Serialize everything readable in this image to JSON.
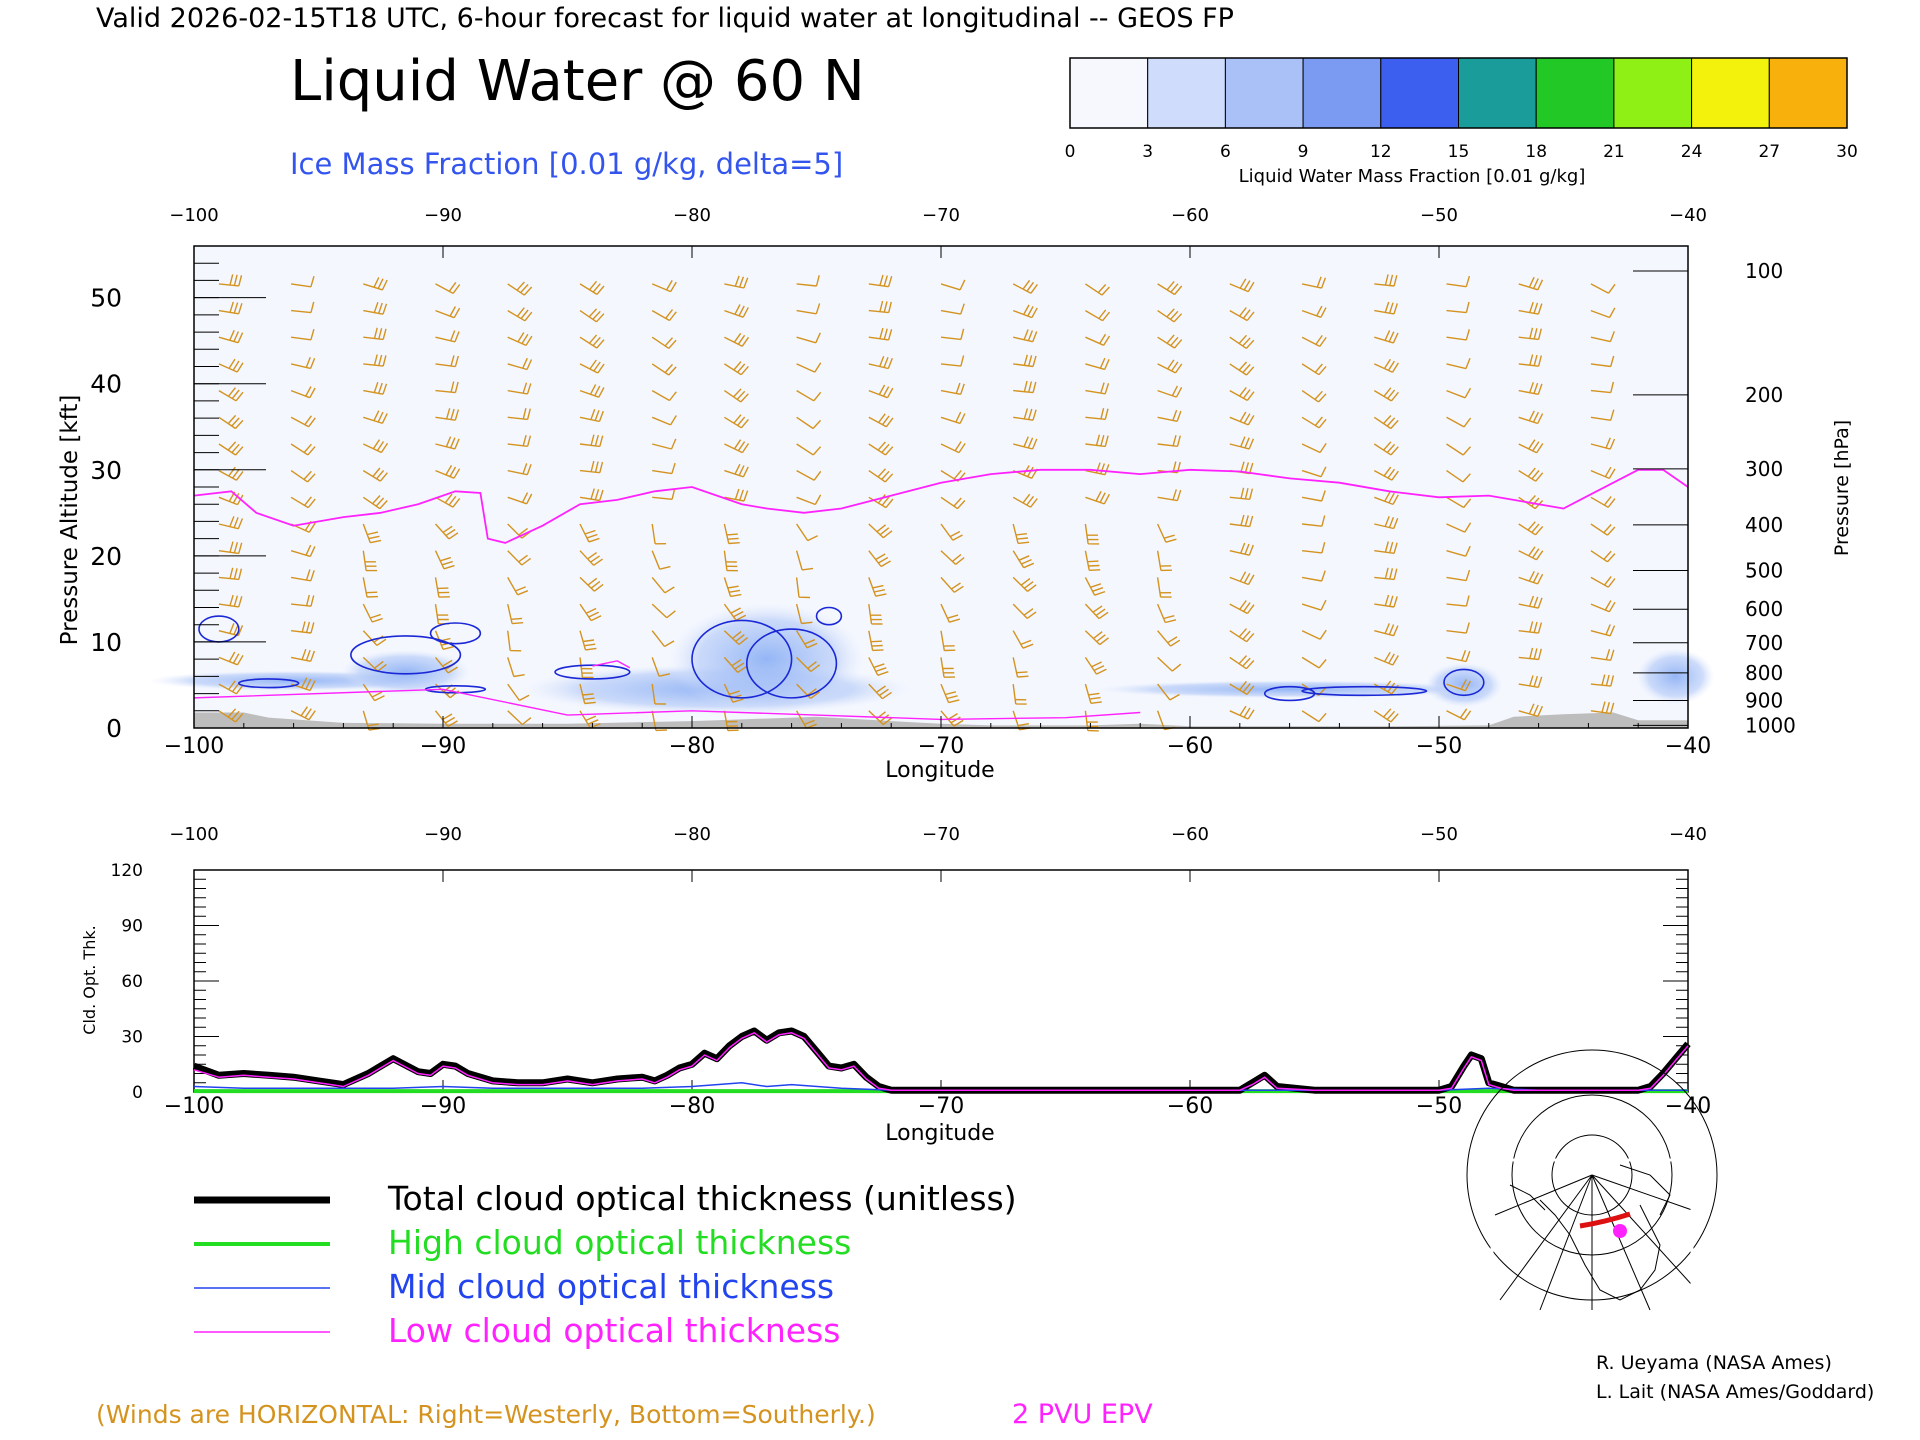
{
  "header": {
    "valid_line": "Valid 2026-02-15T18 UTC, 6-hour forecast for liquid water at longitudinal -- GEOS FP",
    "title": "Liquid Water @ 60 N",
    "subtitle": "Ice Mass Fraction [0.01 g/kg, delta=5]"
  },
  "colorbar": {
    "ticks": [
      "0",
      "3",
      "6",
      "9",
      "12",
      "15",
      "18",
      "21",
      "24",
      "27",
      "30"
    ],
    "colors": [
      "#f6f8fe",
      "#cfdcfb",
      "#a9c1f7",
      "#7b9af2",
      "#3c5ff0",
      "#1a9c9a",
      "#22c826",
      "#8ef014",
      "#f2f20c",
      "#f8b00c",
      "#f86a0a",
      "#f22a0a"
    ],
    "label": "Liquid Water Mass Fraction [0.01 g/kg]"
  },
  "colors": {
    "wind_barb": "#d4931f",
    "tropopause": "#ff22ff",
    "ice_contour": "#1a28d6",
    "liquid_shade": "#8fb2f5",
    "terrain": "#bdbdbd",
    "total": "#000000",
    "high": "#22dd22",
    "mid": "#2244ee",
    "low": "#ff22ff",
    "credit_winds": "#d4931f"
  },
  "chart_data": [
    {
      "type": "contour",
      "name": "top-panel",
      "xlabel": "Longitude",
      "ylabel_left": "Pressure Altitude [kft]",
      "ylabel_right": "Pressure [hPa]",
      "xlim": [
        -100,
        -40
      ],
      "ylim": [
        0,
        56
      ],
      "x_ticks": [
        -100,
        -90,
        -80,
        -70,
        -60,
        -50,
        -40
      ],
      "x_tick_labels": [
        "−100",
        "−90",
        "−80",
        "−70",
        "−60",
        "−50",
        "−40"
      ],
      "y_ticks": [
        0,
        10,
        20,
        30,
        40,
        50
      ],
      "y_tick_labels": [
        "0",
        "10",
        "20",
        "30",
        "40",
        "50"
      ],
      "pressure_ticks": [
        {
          "alt": 53.1,
          "label": "100"
        },
        {
          "alt": 38.7,
          "label": "200"
        },
        {
          "alt": 30.1,
          "label": "300"
        },
        {
          "alt": 23.6,
          "label": "400"
        },
        {
          "alt": 18.3,
          "label": "500"
        },
        {
          "alt": 13.8,
          "label": "600"
        },
        {
          "alt": 9.9,
          "label": "700"
        },
        {
          "alt": 6.4,
          "label": "800"
        },
        {
          "alt": 3.2,
          "label": "900"
        },
        {
          "alt": 0.3,
          "label": "1000"
        }
      ],
      "tropopause_2pvu": {
        "x": [
          -100,
          -98.5,
          -97.5,
          -96,
          -94,
          -92.5,
          -91,
          -89.5,
          -88.5,
          -88.2,
          -87.5,
          -86,
          -84.5,
          -83,
          -81.5,
          -80,
          -79,
          -78,
          -77,
          -75.5,
          -74,
          -72,
          -70,
          -68,
          -66,
          -64,
          -62,
          -60,
          -58,
          -56,
          -54,
          -52,
          -50,
          -48,
          -47,
          -46,
          -45,
          -44,
          -43,
          -42,
          -41,
          -40
        ],
        "y": [
          27,
          27.5,
          25,
          23.5,
          24.5,
          25,
          26,
          27.5,
          27.3,
          22,
          21.5,
          23.5,
          26,
          26.5,
          27.5,
          28,
          27,
          26,
          25.5,
          25,
          25.5,
          27,
          28.5,
          29.5,
          30,
          30,
          29.5,
          30,
          29.8,
          29,
          28.5,
          27.5,
          26.8,
          27,
          26.5,
          26,
          25.5,
          27,
          28.5,
          30,
          30,
          28
        ]
      },
      "liquid_regions": [
        {
          "cx": -79,
          "cy": 4.5,
          "rx": 6,
          "ry": 2.2
        },
        {
          "cx": -77,
          "cy": 8,
          "rx": 3,
          "ry": 5
        },
        {
          "cx": -96,
          "cy": 5.5,
          "rx": 4.5,
          "ry": 0.9
        },
        {
          "cx": -91.5,
          "cy": 6.5,
          "rx": 2,
          "ry": 2
        },
        {
          "cx": -49,
          "cy": 5,
          "rx": 1.2,
          "ry": 2
        },
        {
          "cx": -40.5,
          "cy": 6,
          "rx": 1.2,
          "ry": 2.5
        },
        {
          "cx": -56,
          "cy": 4.5,
          "rx": 6,
          "ry": 0.8
        }
      ],
      "ice_contours": [
        {
          "cx": -99,
          "cy": 11.5,
          "rx": 0.8,
          "ry": 1.5
        },
        {
          "cx": -97,
          "cy": 5.2,
          "rx": 1.2,
          "ry": 0.5
        },
        {
          "cx": -91.5,
          "cy": 8.5,
          "rx": 2.2,
          "ry": 2.2
        },
        {
          "cx": -89.5,
          "cy": 11,
          "rx": 1,
          "ry": 1.2
        },
        {
          "cx": -89.5,
          "cy": 4.5,
          "rx": 1.2,
          "ry": 0.4
        },
        {
          "cx": -84,
          "cy": 6.5,
          "rx": 1.5,
          "ry": 0.8
        },
        {
          "cx": -78,
          "cy": 8,
          "rx": 2,
          "ry": 4.5
        },
        {
          "cx": -76,
          "cy": 7.5,
          "rx": 1.8,
          "ry": 4
        },
        {
          "cx": -74.5,
          "cy": 13,
          "rx": 0.5,
          "ry": 1
        },
        {
          "cx": -56,
          "cy": 4,
          "rx": 1,
          "ry": 0.8
        },
        {
          "cx": -53,
          "cy": 4.3,
          "rx": 2.5,
          "ry": 0.5
        },
        {
          "cx": -49,
          "cy": 5.3,
          "rx": 0.8,
          "ry": 1.5
        }
      ],
      "terrain": {
        "x": [
          -100,
          -98,
          -97,
          -94,
          -90,
          -85,
          -80,
          -75,
          -72,
          -70,
          -68,
          -64,
          -62,
          -60,
          -58,
          -52,
          -48,
          -47,
          -45,
          -43,
          -42,
          -40
        ],
        "y": [
          1.8,
          1.8,
          1.2,
          0.6,
          0.5,
          0.5,
          0.8,
          1.3,
          0.8,
          0.5,
          0.3,
          0.3,
          0.5,
          0.2,
          0.2,
          0.2,
          0.3,
          1.3,
          1.6,
          1.8,
          0.9,
          0.9
        ]
      }
    },
    {
      "type": "line",
      "name": "bottom-panel",
      "xlabel": "Longitude",
      "ylabel": "Cld. Opt. Thk.",
      "xlim": [
        -100,
        -40
      ],
      "ylim": [
        0,
        120
      ],
      "x_ticks": [
        -100,
        -90,
        -80,
        -70,
        -60,
        -50,
        -40
      ],
      "x_tick_labels": [
        "−100",
        "−90",
        "−80",
        "−70",
        "−60",
        "−50",
        "−40"
      ],
      "y_ticks": [
        0,
        30,
        60,
        90,
        120
      ],
      "y_tick_labels": [
        "0",
        "30",
        "60",
        "90",
        "120"
      ],
      "series": [
        {
          "name": "Total cloud optical thickness (unitless)",
          "key": "total",
          "x": [
            -100,
            -99,
            -98,
            -97,
            -96,
            -95,
            -94,
            -93,
            -92,
            -91,
            -90.5,
            -90,
            -89.5,
            -89,
            -88,
            -87,
            -86,
            -85,
            -84,
            -83,
            -82,
            -81.5,
            -81,
            -80.5,
            -80,
            -79.5,
            -79,
            -78.5,
            -78,
            -77.5,
            -77,
            -76.5,
            -76,
            -75.5,
            -75,
            -74.5,
            -74,
            -73.5,
            -73,
            -72.5,
            -72,
            -70,
            -68,
            -65,
            -62,
            -60,
            -58,
            -57.5,
            -57,
            -56.5,
            -55,
            -52,
            -50,
            -49.5,
            -49,
            -48.7,
            -48.3,
            -48,
            -47.5,
            -47,
            -45,
            -43,
            -42,
            -41.5,
            -41,
            -40.5,
            -40
          ],
          "y": [
            14,
            9,
            10,
            9,
            8,
            6,
            4,
            10,
            18,
            11,
            10,
            15,
            14,
            10,
            6,
            5,
            5,
            7,
            5,
            7,
            8,
            6,
            9,
            13,
            15,
            21,
            18,
            25,
            30,
            33,
            28,
            32,
            33,
            30,
            22,
            14,
            13,
            15,
            8,
            3,
            1,
            1,
            1,
            1,
            1,
            1,
            1,
            5,
            9,
            3,
            1,
            1,
            1,
            3,
            14,
            20,
            18,
            5,
            3,
            1,
            1,
            1,
            1,
            3,
            10,
            18,
            26
          ]
        },
        {
          "name": "High cloud optical thickness",
          "key": "high",
          "x": [
            -100,
            -40
          ],
          "y": [
            0.5,
            0.5
          ]
        },
        {
          "name": "Mid cloud optical thickness",
          "key": "mid",
          "x": [
            -100,
            -98,
            -95,
            -92,
            -90,
            -88,
            -85,
            -82,
            -80,
            -78,
            -77,
            -76,
            -74,
            -72,
            -70,
            -60,
            -50,
            -48,
            -46,
            -40
          ],
          "y": [
            3,
            2,
            2,
            2,
            3,
            2,
            2,
            2,
            3,
            5,
            3,
            4,
            2,
            1,
            1,
            1,
            1,
            2,
            1,
            1
          ]
        },
        {
          "name": "Low cloud optical thickness",
          "key": "low",
          "x": [
            -100,
            -99,
            -98,
            -97,
            -96,
            -95,
            -94,
            -93,
            -92,
            -91,
            -90.5,
            -90,
            -89.5,
            -89,
            -88,
            -87,
            -86,
            -85,
            -84,
            -83,
            -82,
            -81.5,
            -81,
            -80.5,
            -80,
            -79.5,
            -79,
            -78.5,
            -78,
            -77.5,
            -77,
            -76.5,
            -76,
            -75.5,
            -75,
            -74.5,
            -74,
            -73.5,
            -73,
            -72.5,
            -72,
            -70,
            -68,
            -65,
            -62,
            -60,
            -58,
            -57.5,
            -57,
            -56.5,
            -55,
            -52,
            -50,
            -49.5,
            -49,
            -48.7,
            -48.3,
            -48,
            -47.5,
            -47,
            -45,
            -43,
            -42,
            -41.5,
            -41,
            -40.5,
            -40
          ],
          "y": [
            12,
            8,
            9,
            8,
            7,
            5,
            3,
            9,
            17,
            10,
            9,
            14,
            13,
            9,
            5,
            4,
            4,
            6,
            4,
            6,
            7,
            5,
            8,
            12,
            14,
            20,
            17,
            24,
            29,
            32,
            27,
            31,
            32,
            29,
            21,
            13,
            12,
            14,
            7,
            2,
            1,
            1,
            1,
            1,
            1,
            1,
            1,
            4,
            8,
            2,
            1,
            1,
            1,
            2,
            13,
            19,
            17,
            4,
            2,
            1,
            1,
            1,
            1,
            2,
            9,
            17,
            25
          ]
        }
      ]
    }
  ],
  "legend": [
    {
      "key": "total",
      "label": "Total cloud optical thickness (unitless)"
    },
    {
      "key": "high",
      "label": "High cloud optical thickness"
    },
    {
      "key": "mid",
      "label": "Mid cloud optical thickness"
    },
    {
      "key": "low",
      "label": "Low cloud optical thickness"
    }
  ],
  "footer": {
    "winds_note": "(Winds are HORIZONTAL: Right=Westerly, Bottom=Southerly.)",
    "pv_label": "2 PVU EPV",
    "credit_1": "R. Ueyama (NASA Ames)",
    "credit_2": "L. Lait (NASA Ames/Goddard)"
  }
}
